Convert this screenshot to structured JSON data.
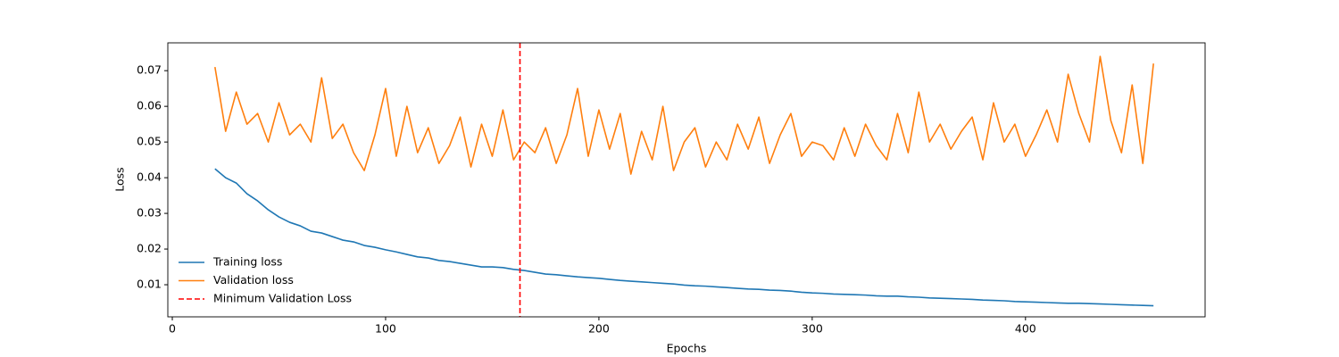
{
  "chart_data": {
    "type": "line",
    "x_label": "Epochs",
    "y_label": "Loss",
    "x": [
      20,
      25,
      30,
      35,
      40,
      45,
      50,
      55,
      60,
      65,
      70,
      75,
      80,
      85,
      90,
      95,
      100,
      105,
      110,
      115,
      120,
      125,
      130,
      135,
      140,
      145,
      150,
      155,
      160,
      165,
      170,
      175,
      180,
      185,
      190,
      195,
      200,
      205,
      210,
      215,
      220,
      225,
      230,
      235,
      240,
      245,
      250,
      255,
      260,
      265,
      270,
      275,
      280,
      285,
      290,
      295,
      300,
      305,
      310,
      315,
      320,
      325,
      330,
      335,
      340,
      345,
      350,
      355,
      360,
      365,
      370,
      375,
      380,
      385,
      390,
      395,
      400,
      405,
      410,
      415,
      420,
      425,
      430,
      435,
      440,
      445,
      450,
      455,
      460
    ],
    "series": [
      {
        "name": "Training loss",
        "color": "#1f77b4",
        "values": [
          0.0425,
          0.04,
          0.0385,
          0.0355,
          0.0335,
          0.031,
          0.029,
          0.0275,
          0.0265,
          0.025,
          0.0245,
          0.0235,
          0.0225,
          0.022,
          0.021,
          0.0205,
          0.0198,
          0.0192,
          0.0185,
          0.0178,
          0.0175,
          0.0168,
          0.0165,
          0.016,
          0.0155,
          0.015,
          0.015,
          0.0148,
          0.0143,
          0.014,
          0.0135,
          0.013,
          0.0128,
          0.0125,
          0.0122,
          0.012,
          0.0118,
          0.0115,
          0.0112,
          0.011,
          0.0108,
          0.0106,
          0.0104,
          0.0102,
          0.0099,
          0.0097,
          0.0096,
          0.0094,
          0.0092,
          0.009,
          0.0088,
          0.0087,
          0.0085,
          0.0084,
          0.0082,
          0.0079,
          0.0077,
          0.0076,
          0.0074,
          0.0073,
          0.0072,
          0.0071,
          0.0069,
          0.0068,
          0.0068,
          0.0066,
          0.0065,
          0.0063,
          0.0062,
          0.0061,
          0.006,
          0.0059,
          0.0057,
          0.0056,
          0.0055,
          0.0053,
          0.0052,
          0.0051,
          0.005,
          0.0049,
          0.0048,
          0.0048,
          0.0047,
          0.0046,
          0.0045,
          0.0044,
          0.0043,
          0.0042,
          0.0041
        ]
      },
      {
        "name": "Validation loss",
        "color": "#ff7f0e",
        "values": [
          0.071,
          0.053,
          0.064,
          0.055,
          0.058,
          0.05,
          0.061,
          0.052,
          0.055,
          0.05,
          0.068,
          0.051,
          0.055,
          0.047,
          0.042,
          0.052,
          0.065,
          0.046,
          0.06,
          0.047,
          0.054,
          0.044,
          0.049,
          0.057,
          0.043,
          0.055,
          0.046,
          0.059,
          0.045,
          0.05,
          0.047,
          0.054,
          0.044,
          0.052,
          0.065,
          0.046,
          0.059,
          0.048,
          0.058,
          0.041,
          0.053,
          0.045,
          0.06,
          0.042,
          0.05,
          0.054,
          0.043,
          0.05,
          0.045,
          0.055,
          0.048,
          0.057,
          0.044,
          0.052,
          0.058,
          0.046,
          0.05,
          0.049,
          0.045,
          0.054,
          0.046,
          0.055,
          0.049,
          0.045,
          0.058,
          0.047,
          0.064,
          0.05,
          0.055,
          0.048,
          0.053,
          0.057,
          0.045,
          0.061,
          0.05,
          0.055,
          0.046,
          0.052,
          0.059,
          0.05,
          0.069,
          0.058,
          0.05,
          0.074,
          0.056,
          0.047,
          0.066,
          0.044,
          0.072
        ]
      }
    ],
    "vlines": [
      {
        "name": "Minimum Validation Loss",
        "color": "red",
        "x": 163
      }
    ],
    "xlim": [
      -2.1,
      484.2
    ],
    "ylim": [
      0.001,
      0.0778
    ],
    "xticks": [
      0,
      100,
      200,
      300,
      400
    ],
    "yticks": [
      0.01,
      0.02,
      0.03,
      0.04,
      0.05,
      0.06,
      0.07
    ],
    "legend": "lower left"
  }
}
